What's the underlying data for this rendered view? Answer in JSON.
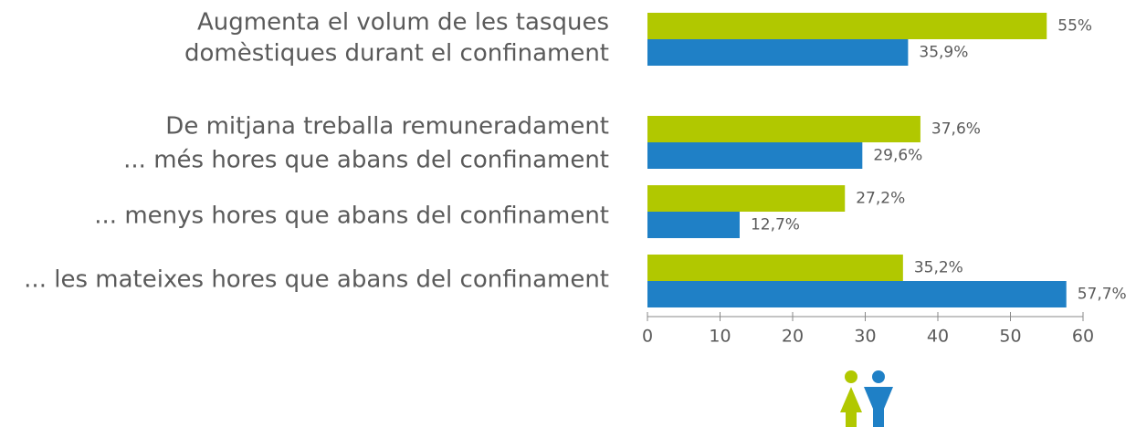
{
  "chart_data": {
    "type": "hbar",
    "group_label": "De mitjana treballa remuneradament",
    "categories": [
      [
        "Augmenta el volum de les tasques",
        "domèstiques durant el confinament"
      ],
      [
        "... més hores que abans del confinament"
      ],
      [
        "... menys hores que abans del confinament"
      ],
      [
        "... les mateixes hores que abans del confinament"
      ]
    ],
    "series": [
      {
        "color": "#b1c800",
        "values": [
          55,
          37.6,
          27.2,
          35.2
        ],
        "value_labels": [
          "55%",
          "37,6%",
          "27,2%",
          "35,2%"
        ]
      },
      {
        "color": "#1f80c6",
        "values": [
          35.9,
          29.6,
          12.7,
          57.7
        ],
        "value_labels": [
          "35,9%",
          "29,6%",
          "12,7%",
          "57,7%"
        ]
      }
    ],
    "xlim": [
      0,
      60
    ],
    "xticks": [
      0,
      10,
      20,
      30,
      40,
      50,
      60
    ]
  }
}
